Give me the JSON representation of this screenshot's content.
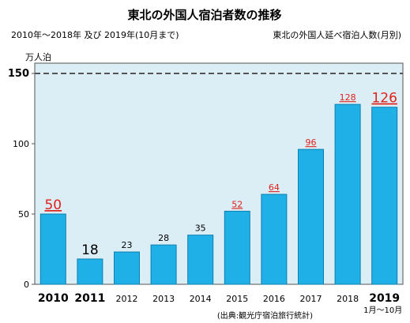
{
  "title": "東北の外国人宿泊者数の推移",
  "subtitle_left": "2010年〜2018年 及び 2019年(10月まで)",
  "subtitle_right": "東北の外国人延べ宿泊人数(月別)",
  "unit_label": "万人泊",
  "source": "(出典:観光庁宿泊旅行統計)",
  "colors": {
    "plot_bg": "#dbeef5",
    "bar_fill": "#1fb0e8",
    "bar_stroke": "#0e7fb0",
    "highlight_label": "#e0201b",
    "reference_line": "#555555"
  },
  "chart_data": {
    "type": "bar",
    "categories": [
      "2010",
      "2011",
      "2012",
      "2013",
      "2014",
      "2015",
      "2016",
      "2017",
      "2018",
      "2019"
    ],
    "category_sublabels": [
      "",
      "",
      "",
      "",
      "",
      "",
      "",
      "",
      "",
      "1月〜10月"
    ],
    "values": [
      50,
      18,
      23,
      28,
      35,
      52,
      64,
      96,
      128,
      126
    ],
    "value_labels": [
      "50",
      "18",
      "23",
      "28",
      "35",
      "52",
      "64",
      "96",
      "128",
      "126"
    ],
    "label_emphasis": [
      "large-red",
      "large",
      "normal",
      "normal",
      "normal",
      "red",
      "red",
      "red",
      "red",
      "large-red"
    ],
    "category_emphasis": [
      "large",
      "large",
      "normal",
      "normal",
      "normal",
      "normal",
      "normal",
      "normal",
      "normal",
      "large"
    ],
    "yticks": [
      0,
      50,
      100,
      150
    ],
    "ylim": [
      0,
      150
    ],
    "reference_line": 150,
    "grid": false
  }
}
